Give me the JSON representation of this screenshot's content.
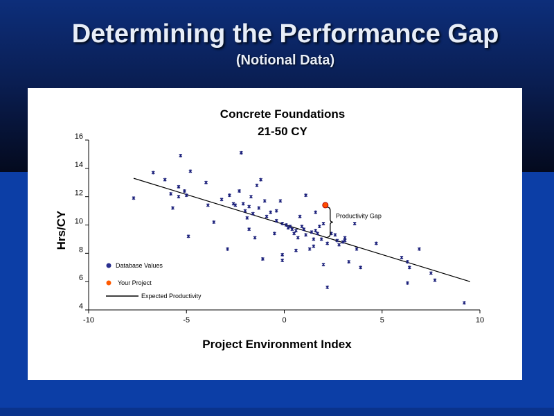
{
  "slide": {
    "title": "Determining the Performance Gap",
    "subtitle": "(Notional Data)"
  },
  "chart_data": {
    "type": "scatter",
    "title": "Concrete Foundations",
    "subtitle": "21-50 CY",
    "xlabel": "Project Environment Index",
    "ylabel": "Hrs/CY",
    "xlim": [
      -10,
      10
    ],
    "ylim": [
      4,
      16
    ],
    "xticks": [
      -10,
      -5,
      0,
      5,
      10
    ],
    "yticks": [
      4,
      6,
      8,
      10,
      12,
      14,
      16
    ],
    "grid": false,
    "legend_position": "bottom-left",
    "legend": [
      {
        "label": "Database Values",
        "marker": "dot",
        "color": "#2a2f8f"
      },
      {
        "label": "Your Project",
        "marker": "dot",
        "color": "#ff5a00"
      },
      {
        "label": "Expected Productivity",
        "marker": "line",
        "color": "#000000"
      }
    ],
    "series": [
      {
        "name": "Database Values",
        "color": "#1a1f7a",
        "points": [
          [
            -7.7,
            11.9
          ],
          [
            -6.7,
            13.7
          ],
          [
            -6.1,
            13.2
          ],
          [
            -5.8,
            12.2
          ],
          [
            -5.7,
            11.2
          ],
          [
            -5.3,
            14.9
          ],
          [
            -5.4,
            12.7
          ],
          [
            -5.1,
            12.4
          ],
          [
            -5.4,
            12.0
          ],
          [
            -5.0,
            12.1
          ],
          [
            -4.9,
            9.2
          ],
          [
            -4.8,
            13.8
          ],
          [
            -4.0,
            13.0
          ],
          [
            -3.9,
            11.4
          ],
          [
            -3.6,
            10.2
          ],
          [
            -3.2,
            11.8
          ],
          [
            -2.9,
            8.3
          ],
          [
            -2.8,
            12.1
          ],
          [
            -2.6,
            11.5
          ],
          [
            -2.5,
            11.4
          ],
          [
            -2.3,
            12.4
          ],
          [
            -2.2,
            15.1
          ],
          [
            -2.1,
            11.5
          ],
          [
            -2.0,
            11.0
          ],
          [
            -1.9,
            10.5
          ],
          [
            -1.8,
            9.7
          ],
          [
            -1.8,
            11.3
          ],
          [
            -1.7,
            12.0
          ],
          [
            -1.6,
            10.8
          ],
          [
            -1.5,
            9.1
          ],
          [
            -1.4,
            12.8
          ],
          [
            -1.3,
            11.2
          ],
          [
            -1.2,
            13.2
          ],
          [
            -1.1,
            7.6
          ],
          [
            -1.0,
            11.7
          ],
          [
            -0.9,
            10.6
          ],
          [
            -0.7,
            10.9
          ],
          [
            -0.5,
            9.4
          ],
          [
            -0.4,
            11.0
          ],
          [
            -0.4,
            10.3
          ],
          [
            -0.2,
            11.7
          ],
          [
            -0.1,
            10.1
          ],
          [
            -0.1,
            7.9
          ],
          [
            -0.1,
            7.5
          ],
          [
            0.1,
            10.0
          ],
          [
            0.2,
            9.8
          ],
          [
            0.3,
            9.9
          ],
          [
            0.4,
            9.7
          ],
          [
            0.5,
            9.4
          ],
          [
            0.6,
            9.6
          ],
          [
            0.6,
            8.2
          ],
          [
            0.7,
            9.1
          ],
          [
            0.8,
            10.6
          ],
          [
            0.9,
            9.9
          ],
          [
            1.0,
            9.7
          ],
          [
            1.1,
            12.1
          ],
          [
            1.1,
            9.3
          ],
          [
            1.3,
            8.3
          ],
          [
            1.4,
            9.5
          ],
          [
            1.5,
            9.0
          ],
          [
            1.5,
            8.5
          ],
          [
            1.6,
            9.6
          ],
          [
            1.6,
            10.9
          ],
          [
            1.7,
            9.4
          ],
          [
            1.8,
            9.9
          ],
          [
            1.9,
            9.0
          ],
          [
            2.0,
            10.1
          ],
          [
            2.0,
            7.2
          ],
          [
            2.2,
            8.7
          ],
          [
            2.2,
            5.6
          ],
          [
            2.4,
            9.4
          ],
          [
            2.6,
            9.3
          ],
          [
            2.7,
            8.9
          ],
          [
            2.8,
            8.6
          ],
          [
            3.0,
            8.8
          ],
          [
            3.1,
            8.9
          ],
          [
            3.1,
            9.1
          ],
          [
            3.3,
            7.4
          ],
          [
            3.6,
            10.1
          ],
          [
            3.7,
            8.3
          ],
          [
            3.9,
            7.0
          ],
          [
            4.7,
            8.7
          ],
          [
            6.0,
            7.7
          ],
          [
            6.3,
            5.9
          ],
          [
            6.3,
            7.4
          ],
          [
            6.4,
            7.0
          ],
          [
            6.9,
            8.3
          ],
          [
            7.5,
            6.6
          ],
          [
            7.7,
            6.1
          ],
          [
            9.2,
            4.5
          ]
        ]
      },
      {
        "name": "Your Project",
        "color": "#ff4d00",
        "points": [
          [
            2.1,
            11.4
          ]
        ]
      }
    ],
    "trend_line": {
      "name": "Expected Productivity",
      "x": [
        -7.7,
        9.5
      ],
      "y": [
        13.3,
        6.0
      ]
    },
    "annotation": {
      "text": "Productivity Gap",
      "x": 2.1,
      "y_from": 11.4,
      "y_to": 9.1
    }
  }
}
